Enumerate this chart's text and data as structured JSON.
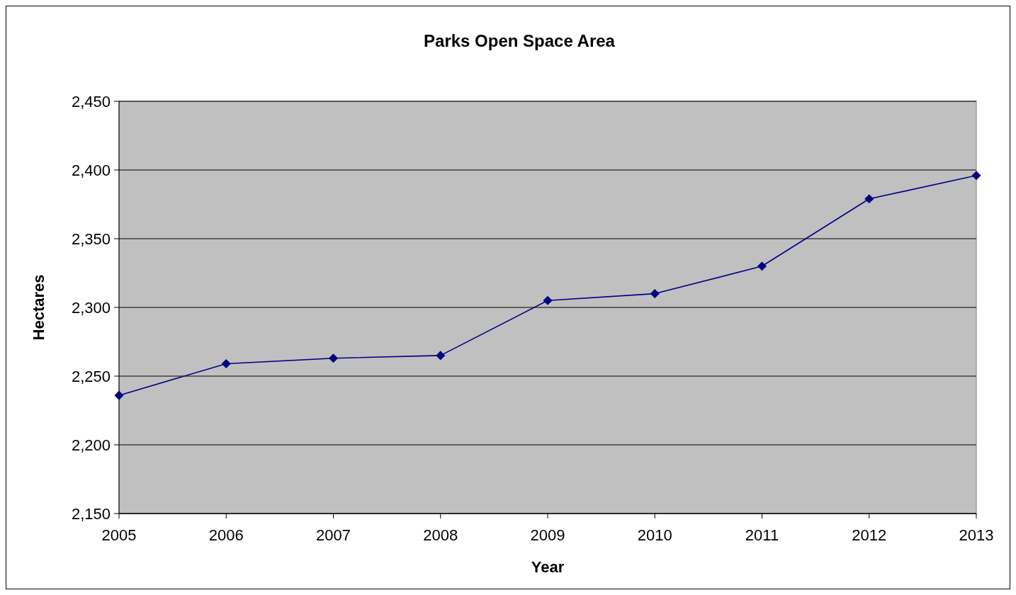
{
  "chart_data": {
    "type": "line",
    "title": "Parks Open Space Area",
    "xlabel": "Year",
    "ylabel": "Hectares",
    "categories": [
      "2005",
      "2006",
      "2007",
      "2008",
      "2009",
      "2010",
      "2011",
      "2012",
      "2013"
    ],
    "series": [
      {
        "color": "#000080",
        "values": [
          2236,
          2259,
          2263,
          2265,
          2305,
          2310,
          2330,
          2379,
          2396
        ]
      }
    ],
    "ylim": [
      2150,
      2450
    ],
    "yticks": [
      {
        "value": 2150,
        "label": "2,150"
      },
      {
        "value": 2200,
        "label": "2,200"
      },
      {
        "value": 2250,
        "label": "2,250"
      },
      {
        "value": 2300,
        "label": "2,300"
      },
      {
        "value": 2350,
        "label": "2,350"
      },
      {
        "value": 2400,
        "label": "2,400"
      },
      {
        "value": 2450,
        "label": "2,450"
      }
    ],
    "grid": "y",
    "marker": "diamond"
  }
}
